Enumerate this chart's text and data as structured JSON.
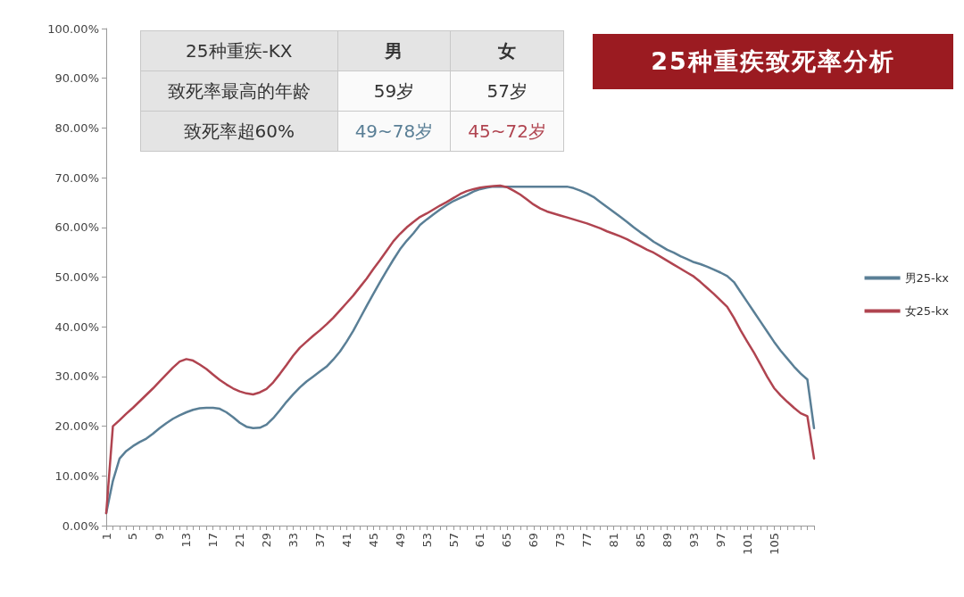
{
  "chart_data": {
    "type": "line",
    "title": "25种重疾致死率分析",
    "annotations": [
      "25种重疾-KX",
      "男",
      "女",
      "致死率最高的年龄",
      "59岁",
      "57岁",
      "致死率超60%",
      "49~78岁",
      "45~72岁"
    ],
    "categories": [
      "1",
      null,
      null,
      null,
      "5",
      null,
      null,
      null,
      "9",
      null,
      null,
      null,
      "13",
      null,
      null,
      null,
      "17",
      null,
      null,
      null,
      "21",
      null,
      null,
      null,
      "29",
      null,
      null,
      null,
      "33",
      null,
      null,
      null,
      "37",
      null,
      null,
      null,
      "41",
      null,
      null,
      null,
      "45",
      null,
      null,
      null,
      "49",
      null,
      null,
      null,
      "53",
      null,
      null,
      null,
      "57",
      null,
      null,
      null,
      "61",
      null,
      null,
      null,
      "65",
      null,
      null,
      null,
      "69",
      null,
      null,
      null,
      "73",
      null,
      null,
      null,
      "77",
      null,
      null,
      null,
      "81",
      null,
      null,
      null,
      "85",
      null,
      null,
      null,
      "89",
      null,
      null,
      null,
      "93",
      null,
      null,
      null,
      "97",
      null,
      null,
      null,
      "101",
      null,
      null,
      null,
      "105",
      null,
      null,
      null,
      null,
      null,
      null
    ],
    "ylim": [
      0,
      100
    ],
    "yticks": [
      {
        "value": 0,
        "label": "0.00%"
      },
      {
        "value": 10,
        "label": "10.00%"
      },
      {
        "value": 20,
        "label": "20.00%"
      },
      {
        "value": 30,
        "label": "30.00%"
      },
      {
        "value": 40,
        "label": "40.00%"
      },
      {
        "value": 50,
        "label": "50.00%"
      },
      {
        "value": 60,
        "label": "60.00%"
      },
      {
        "value": 70,
        "label": "70.00%"
      },
      {
        "value": 80,
        "label": "80.00%"
      },
      {
        "value": 90,
        "label": "90.00%"
      },
      {
        "value": 100,
        "label": "100.00%"
      }
    ],
    "grid": false,
    "legend": "right",
    "marker": "none",
    "line_style": "solid",
    "series": [
      {
        "name": "男25-kx",
        "color": "#5a7f96",
        "values": [
          2.5,
          9,
          13.5,
          15,
          16,
          16.8,
          17.5,
          18.5,
          19.6,
          20.6,
          21.5,
          22.2,
          22.8,
          23.3,
          23.6,
          23.7,
          23.7,
          23.5,
          22.8,
          21.8,
          20.7,
          19.9,
          19.6,
          19.7,
          20.3,
          21.6,
          23.2,
          24.9,
          26.4,
          27.8,
          29,
          30,
          31,
          32,
          33.4,
          35,
          37,
          39.2,
          41.7,
          44.2,
          46.6,
          49,
          51.3,
          53.5,
          55.6,
          57.3,
          58.8,
          60.5,
          61.6,
          62.6,
          63.6,
          64.5,
          65.3,
          65.9,
          66.5,
          67.2,
          67.7,
          68,
          68.2,
          68.2,
          68.2,
          68.2,
          68.2,
          68.2,
          68.2,
          68.2,
          68.2,
          68.2,
          68.2,
          68.2,
          67.9,
          67.4,
          66.8,
          66.1,
          65.1,
          64.1,
          63.1,
          62.1,
          61.1,
          60,
          59,
          58.1,
          57.1,
          56.3,
          55.5,
          54.9,
          54.2,
          53.6,
          53,
          52.6,
          52.1,
          51.5,
          50.9,
          50.2,
          49,
          47,
          45,
          43,
          41,
          39,
          37,
          35.2,
          33.6,
          32,
          30.6,
          29.4,
          19.6
        ]
      },
      {
        "name": "女25-kx",
        "color": "#b04450",
        "values": [
          2.5,
          20,
          21.2,
          22.5,
          23.7,
          25,
          26.3,
          27.6,
          29,
          30.4,
          31.8,
          33,
          33.5,
          33.2,
          32.4,
          31.5,
          30.4,
          29.3,
          28.4,
          27.6,
          27,
          26.6,
          26.4,
          26.8,
          27.5,
          28.8,
          30.5,
          32.3,
          34.2,
          35.8,
          37,
          38.2,
          39.3,
          40.5,
          41.8,
          43.3,
          44.8,
          46.3,
          48,
          49.7,
          51.6,
          53.4,
          55.3,
          57.2,
          58.7,
          60,
          61.1,
          62.1,
          62.8,
          63.6,
          64.4,
          65.1,
          65.9,
          66.7,
          67.3,
          67.7,
          68,
          68.2,
          68.3,
          68.4,
          68.1,
          67.4,
          66.6,
          65.6,
          64.6,
          63.8,
          63.2,
          62.8,
          62.4,
          62,
          61.6,
          61.2,
          60.8,
          60.3,
          59.8,
          59.2,
          58.7,
          58.2,
          57.6,
          56.9,
          56.2,
          55.5,
          54.9,
          54.1,
          53.3,
          52.5,
          51.7,
          50.9,
          50.1,
          49,
          47.8,
          46.6,
          45.3,
          44,
          41.8,
          39.3,
          37,
          34.8,
          32.4,
          29.9,
          27.7,
          26.2,
          24.9,
          23.7,
          22.6,
          22,
          13.5
        ]
      }
    ]
  }
}
